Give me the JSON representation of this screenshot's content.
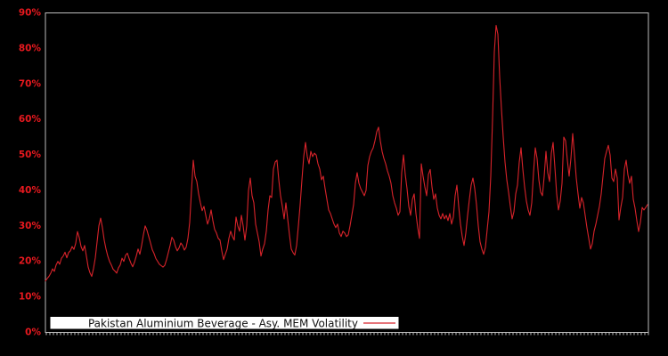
{
  "colors": {
    "background": "#000000",
    "axis": "#bdbdbd",
    "tick_label_red": "#e8191f",
    "series_red": "#d7232a",
    "legend_bg": "#ffffff",
    "legend_text": "#111111"
  },
  "legend": {
    "label": "Pakistan Aluminium Beverage - Asy. MEM Volatility"
  },
  "chart_data": {
    "type": "line",
    "title": "",
    "xlabel": "",
    "ylabel": "",
    "grid": false,
    "plot_background": "#000000",
    "legend_position": "bottom-left-inside",
    "ylim": [
      0,
      90
    ],
    "y_tick_labels": [
      "0%",
      "10%",
      "20%",
      "30%",
      "40%",
      "50%",
      "60%",
      "70%",
      "80%",
      "90%"
    ],
    "x_axis_labels_visible": false,
    "y_unit": "percent",
    "series": [
      {
        "name": "Pakistan Aluminium Beverage - Asy. MEM Volatility",
        "color": "#d7232a",
        "values": [
          14.5,
          15.2,
          15.8,
          16.7,
          17.9,
          17.2,
          19,
          20,
          19.2,
          20.9,
          21.5,
          22.6,
          21,
          22.5,
          23,
          24.2,
          23.4,
          25.1,
          28.4,
          26.7,
          24.2,
          23,
          24.5,
          21.5,
          18.4,
          16.8,
          15.8,
          18,
          21,
          25.5,
          30,
          32.2,
          29.5,
          26,
          23.5,
          21.5,
          20,
          19,
          17.8,
          17.3,
          16.7,
          18.2,
          19,
          20.9,
          20,
          21.7,
          22.3,
          20.8,
          19.5,
          18.5,
          19.8,
          21.5,
          23.5,
          22,
          24.5,
          27.5,
          30,
          28.8,
          27,
          25.2,
          23.3,
          22.2,
          20.8,
          20,
          19.2,
          18.8,
          18.4,
          18.9,
          20.5,
          22.5,
          24.5,
          26.8,
          26,
          24.2,
          23,
          23.8,
          25.2,
          24.5,
          23.2,
          24,
          26.5,
          31,
          40,
          48.5,
          44,
          42.5,
          39,
          36.5,
          34.3,
          35.5,
          33,
          30.5,
          32,
          34.5,
          31.5,
          29,
          28,
          26.5,
          26,
          23,
          20.5,
          22,
          23.5,
          26.5,
          28.5,
          27,
          26,
          32.5,
          30,
          28.5,
          33,
          30,
          26,
          30,
          40,
          43.5,
          38.5,
          36.5,
          30.5,
          28,
          25.5,
          21.5,
          23.5,
          25,
          28.5,
          34.5,
          38.5,
          38,
          46,
          48,
          48.5,
          43,
          38.5,
          35.5,
          32,
          36.5,
          32,
          27.5,
          23.5,
          22.5,
          21.8,
          24.5,
          30,
          36,
          43,
          49.5,
          53.5,
          49.5,
          47.5,
          51,
          49.5,
          50.5,
          50,
          47.5,
          46,
          43,
          44,
          40.5,
          37.5,
          34.5,
          33.5,
          32,
          30.5,
          29.5,
          30.5,
          28,
          27,
          28.5,
          28,
          27,
          27.5,
          30,
          33,
          36,
          42,
          45,
          42,
          40.5,
          39.5,
          38.5,
          40,
          47,
          49.5,
          51,
          52,
          54,
          56.5,
          57.8,
          54,
          51,
          49,
          47.5,
          45.5,
          44,
          42,
          38.5,
          36.5,
          35,
          33,
          34,
          45,
          50,
          44.5,
          40.5,
          35.5,
          33,
          37.5,
          39,
          33.5,
          29.5,
          26.5,
          47.5,
          44,
          41,
          38.5,
          44.5,
          45.9,
          41,
          37.5,
          39,
          35,
          33,
          32,
          33.5,
          32,
          33,
          31.5,
          33.5,
          30.5,
          32.5,
          38.5,
          41.5,
          35.5,
          30.5,
          27,
          24.5,
          28,
          33,
          37.5,
          41.5,
          43.5,
          40.5,
          36,
          30,
          25.5,
          23.5,
          22,
          24,
          29,
          34,
          44,
          60,
          79,
          86.5,
          84,
          72,
          63,
          55,
          48,
          43,
          39.5,
          35.5,
          32,
          34,
          39,
          41.5,
          48,
          52,
          46,
          41,
          37,
          34.5,
          33,
          36.5,
          45,
          52,
          49,
          43,
          39.5,
          38.5,
          44,
          51,
          45,
          42.5,
          50.5,
          53.5,
          46.5,
          39,
          34.5,
          37,
          42,
          55,
          54,
          48.5,
          44,
          49,
          56,
          50,
          43.5,
          39,
          35,
          38,
          36.5,
          33,
          29.5,
          26.5,
          23.5,
          25,
          28.5,
          30.5,
          33,
          35.5,
          39,
          44,
          49,
          51,
          52.7,
          50,
          43.5,
          42.5,
          46,
          43.5,
          31.7,
          35.2,
          38,
          46,
          48.5,
          44.4,
          42,
          44,
          37.5,
          35,
          31.5,
          28.4,
          31,
          35.2,
          34.5,
          35.2,
          36
        ]
      }
    ]
  }
}
